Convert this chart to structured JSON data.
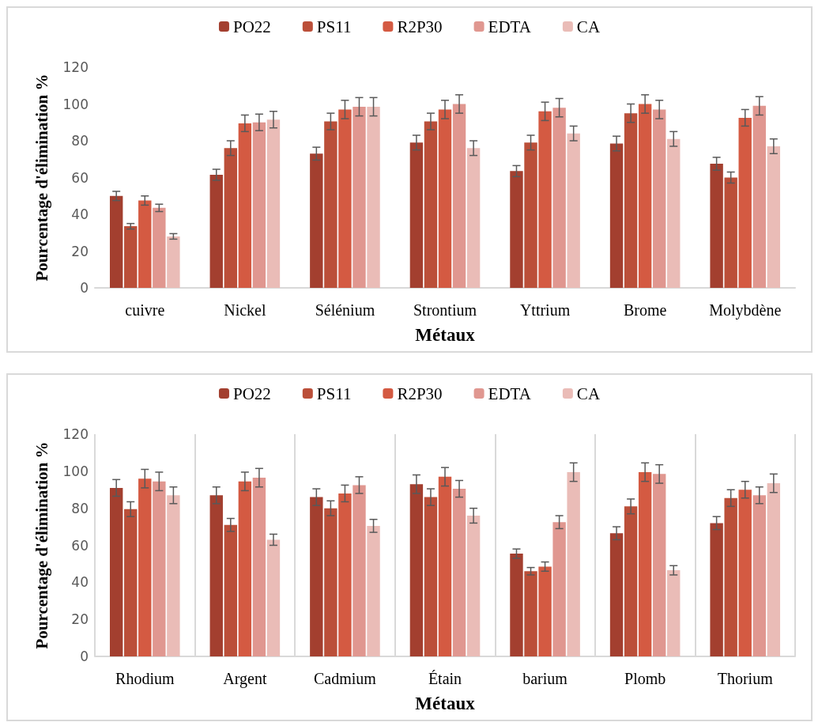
{
  "chart_data": [
    {
      "type": "bar",
      "xlabel": "Métaux",
      "ylabel": "Pourcentage d'élimination %",
      "categories": [
        "cuivre",
        "Nickel",
        "Sélénium",
        "Strontium",
        "Yttrium",
        "Brome",
        "Molybdène"
      ],
      "ylim": [
        0,
        120
      ],
      "yticks": [
        0,
        20,
        40,
        60,
        80,
        100,
        120
      ],
      "grid": false,
      "legend": "top",
      "series": [
        {
          "name": "PO22",
          "color": "#a33f2f",
          "values": [
            50,
            61.5,
            73,
            79,
            63.5,
            78.5,
            67.5
          ],
          "errors": [
            2.5,
            3,
            3.5,
            4,
            3,
            4,
            3.5
          ]
        },
        {
          "name": "PS11",
          "color": "#bb4f39",
          "values": [
            33.5,
            76,
            90.5,
            90.5,
            79,
            95,
            60
          ],
          "errors": [
            1.5,
            4,
            4.5,
            4.5,
            4,
            5,
            3
          ]
        },
        {
          "name": "R2P30",
          "color": "#d45a42",
          "values": [
            47.5,
            89.5,
            97,
            97,
            96,
            100,
            92.5
          ],
          "errors": [
            2.5,
            4.5,
            5,
            5,
            5,
            5,
            4.5
          ]
        },
        {
          "name": "EDTA",
          "color": "#e09790",
          "values": [
            43.5,
            90,
            98.5,
            100,
            98,
            97,
            99
          ],
          "errors": [
            2,
            4.5,
            5,
            5,
            5,
            5,
            5
          ]
        },
        {
          "name": "CA",
          "color": "#eabcb7",
          "values": [
            28,
            91.5,
            98.5,
            76,
            84,
            81,
            77
          ],
          "errors": [
            1.5,
            4.5,
            5,
            4,
            4,
            4,
            4
          ]
        }
      ]
    },
    {
      "type": "bar",
      "xlabel": "Métaux",
      "ylabel": "Pourcentage d'élimination %",
      "categories": [
        "Rhodium",
        "Argent",
        "Cadmium",
        "Étain",
        "barium",
        "Plomb",
        "Thorium"
      ],
      "ylim": [
        0,
        120
      ],
      "yticks": [
        0,
        20,
        40,
        60,
        80,
        100,
        120
      ],
      "grid": "x",
      "legend": "top",
      "series": [
        {
          "name": "PO22",
          "color": "#a33f2f",
          "values": [
            91,
            87,
            86,
            93,
            55.5,
            66.5,
            72
          ],
          "errors": [
            4.5,
            4.5,
            4.5,
            5,
            2.5,
            3.5,
            3.5
          ]
        },
        {
          "name": "PS11",
          "color": "#bb4f39",
          "values": [
            79.5,
            71,
            80,
            86,
            46,
            81,
            85.5
          ],
          "errors": [
            4,
            3.5,
            4,
            4.5,
            2,
            4,
            4.5
          ]
        },
        {
          "name": "R2P30",
          "color": "#d45a42",
          "values": [
            96,
            94.5,
            88,
            97,
            48.5,
            99.5,
            90
          ],
          "errors": [
            5,
            5,
            4.5,
            5,
            2.5,
            5,
            4.5
          ]
        },
        {
          "name": "EDTA",
          "color": "#e09790",
          "values": [
            94.5,
            96.5,
            92.5,
            90.5,
            72.5,
            98.5,
            87
          ],
          "errors": [
            5,
            5,
            4.5,
            4.5,
            3.5,
            5,
            4.5
          ]
        },
        {
          "name": "CA",
          "color": "#eabcb7",
          "values": [
            87,
            63,
            70.5,
            76,
            99.5,
            46.5,
            93.5
          ],
          "errors": [
            4.5,
            3,
            3.5,
            4,
            5,
            2.5,
            5
          ]
        }
      ]
    }
  ]
}
